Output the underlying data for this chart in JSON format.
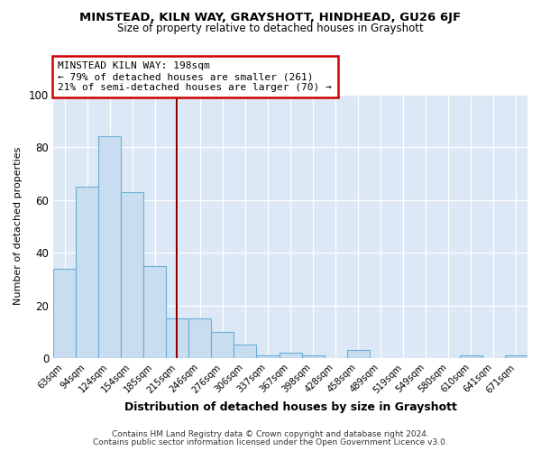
{
  "title": "MINSTEAD, KILN WAY, GRAYSHOTT, HINDHEAD, GU26 6JF",
  "subtitle": "Size of property relative to detached houses in Grayshott",
  "xlabel": "Distribution of detached houses by size in Grayshott",
  "ylabel": "Number of detached properties",
  "categories": [
    "63sqm",
    "94sqm",
    "124sqm",
    "154sqm",
    "185sqm",
    "215sqm",
    "246sqm",
    "276sqm",
    "306sqm",
    "337sqm",
    "367sqm",
    "398sqm",
    "428sqm",
    "458sqm",
    "489sqm",
    "519sqm",
    "549sqm",
    "580sqm",
    "610sqm",
    "641sqm",
    "671sqm"
  ],
  "values": [
    34,
    65,
    84,
    63,
    35,
    15,
    15,
    10,
    5,
    1,
    2,
    1,
    0,
    3,
    0,
    0,
    0,
    0,
    1,
    0,
    1
  ],
  "bar_color": "#c8ddf0",
  "bar_edge_color": "#6aaed6",
  "vline_x_index": 4.97,
  "vline_color": "#8b0000",
  "ylim": [
    0,
    100
  ],
  "yticks": [
    0,
    20,
    40,
    60,
    80,
    100
  ],
  "annotation_line1": "MINSTEAD KILN WAY: 198sqm",
  "annotation_line2": "← 79% of detached houses are smaller (261)",
  "annotation_line3": "21% of semi-detached houses are larger (70) →",
  "annotation_box_edge": "#cc0000",
  "footnote1": "Contains HM Land Registry data © Crown copyright and database right 2024.",
  "footnote2": "Contains public sector information licensed under the Open Government Licence v3.0.",
  "fig_background_color": "#ffffff",
  "plot_bg_color": "#dce8f5"
}
